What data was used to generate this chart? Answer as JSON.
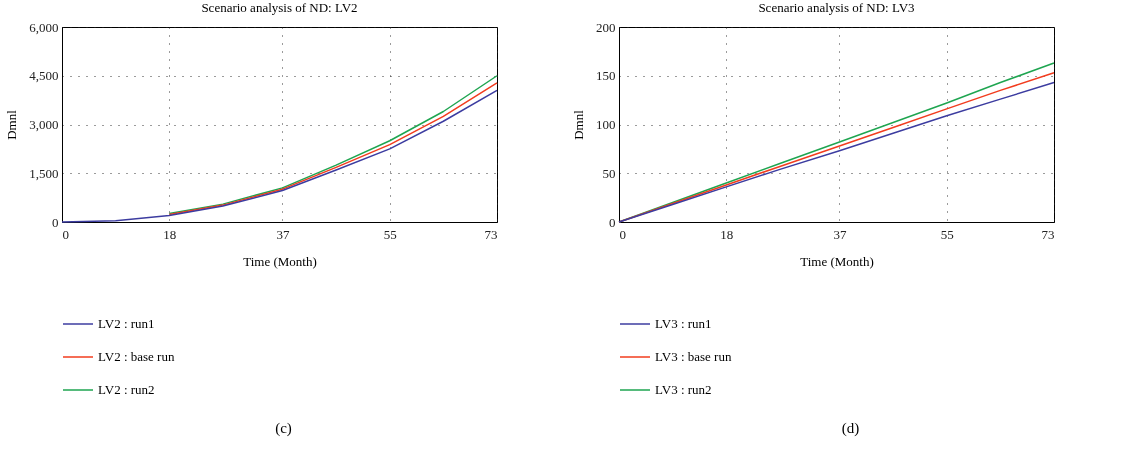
{
  "chart_data": [
    {
      "type": "line",
      "title": "Scenario analysis of ND: LV2",
      "xlabel": "Time (Month)",
      "ylabel": "Dmnl",
      "x": [
        0,
        9,
        18,
        27,
        37,
        46,
        55,
        64,
        73
      ],
      "xlim": [
        0,
        73
      ],
      "xticks": [
        0,
        18,
        37,
        55,
        73
      ],
      "ylim": [
        0,
        6000
      ],
      "yticks": [
        0,
        {
          "value": 1500,
          "label": "1,500"
        },
        {
          "value": 3000,
          "label": "3,000"
        },
        {
          "value": 4500,
          "label": "4,500"
        },
        {
          "value": 6000,
          "label": "6,000"
        }
      ],
      "grid": true,
      "legend": "bottom",
      "annotations": [
        "(c)"
      ],
      "series": [
        {
          "name": "LV2 : run1",
          "color": "#3c3ca0",
          "values": [
            0,
            40,
            200,
            490,
            970,
            1600,
            2250,
            3100,
            4050
          ]
        },
        {
          "name": "LV2 : base run",
          "color": "#f23c1e",
          "values": [
            null,
            null,
            230,
            520,
            1010,
            1680,
            2380,
            3250,
            4280
          ]
        },
        {
          "name": "LV2 : run2",
          "color": "#1ea550",
          "values": [
            null,
            null,
            260,
            550,
            1050,
            1750,
            2500,
            3400,
            4500
          ]
        }
      ]
    },
    {
      "type": "line",
      "title": "Scenario analysis of ND: LV3",
      "xlabel": "Time (Month)",
      "ylabel": "Dmnl",
      "x": [
        0,
        9,
        18,
        27,
        37,
        46,
        55,
        64,
        73
      ],
      "xlim": [
        0,
        73
      ],
      "xticks": [
        0,
        18,
        37,
        55,
        73
      ],
      "ylim": [
        0,
        200
      ],
      "yticks": [
        0,
        50,
        100,
        150,
        200
      ],
      "grid": true,
      "legend": "bottom",
      "annotations": [
        "(d)"
      ],
      "series": [
        {
          "name": "LV3 : run1",
          "color": "#3c3ca0",
          "values": [
            0,
            18,
            36,
            54,
            73,
            91,
            109,
            126,
            143
          ]
        },
        {
          "name": "LV3 : base run",
          "color": "#f23c1e",
          "values": [
            0,
            19,
            38,
            57,
            78,
            97,
            116,
            135,
            153
          ]
        },
        {
          "name": "LV3 : run2",
          "color": "#1ea550",
          "values": [
            0,
            20,
            40,
            60,
            82,
            102,
            122,
            143,
            163
          ]
        }
      ]
    }
  ]
}
